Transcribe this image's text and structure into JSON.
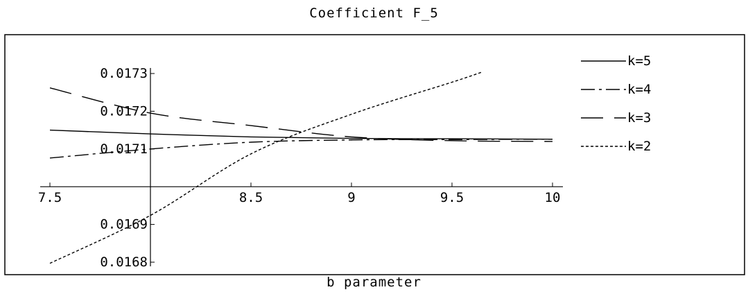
{
  "chart_data": {
    "type": "line",
    "title": "Coefficient F_5",
    "xlabel": "b parameter",
    "ylabel": "",
    "xlim": [
      7.5,
      10
    ],
    "ylim": [
      0.0168,
      0.0173
    ],
    "x_origin": 8,
    "y_origin": 0.017,
    "x_ticks": [
      7.5,
      8.5,
      9,
      9.5,
      10
    ],
    "x_tick_labels": [
      "7.5",
      "8.5",
      "9",
      "9.5",
      "10"
    ],
    "y_ticks": [
      0.0168,
      0.0169,
      0.0171,
      0.0172,
      0.0173
    ],
    "y_tick_labels": [
      "0.0168",
      "0.0169",
      "0.0171",
      "0.0172",
      "0.0173"
    ],
    "grid": false,
    "legend_position": "right",
    "series": [
      {
        "name": "k=5",
        "style": "solid",
        "x": [
          7.5,
          8,
          8.5,
          9,
          9.5,
          10
        ],
        "y": [
          0.01715,
          0.01714,
          0.017132,
          0.017128,
          0.017127,
          0.017126
        ]
      },
      {
        "name": "k=4",
        "style": "dashdot",
        "x": [
          7.5,
          8,
          8.5,
          9,
          9.5,
          10
        ],
        "y": [
          0.017076,
          0.0171,
          0.017118,
          0.017124,
          0.017125,
          0.017126
        ]
      },
      {
        "name": "k=3",
        "style": "longdash",
        "x": [
          7.5,
          8,
          8.5,
          9,
          9.5,
          10
        ],
        "y": [
          0.017262,
          0.017195,
          0.017162,
          0.017132,
          0.017122,
          0.01712
        ]
      },
      {
        "name": "k=2",
        "style": "dotted",
        "x": [
          7.5,
          8,
          8.5,
          9,
          9.5,
          9.65
        ],
        "y": [
          0.016797,
          0.016924,
          0.017087,
          0.017192,
          0.017277,
          0.017304
        ]
      }
    ]
  }
}
